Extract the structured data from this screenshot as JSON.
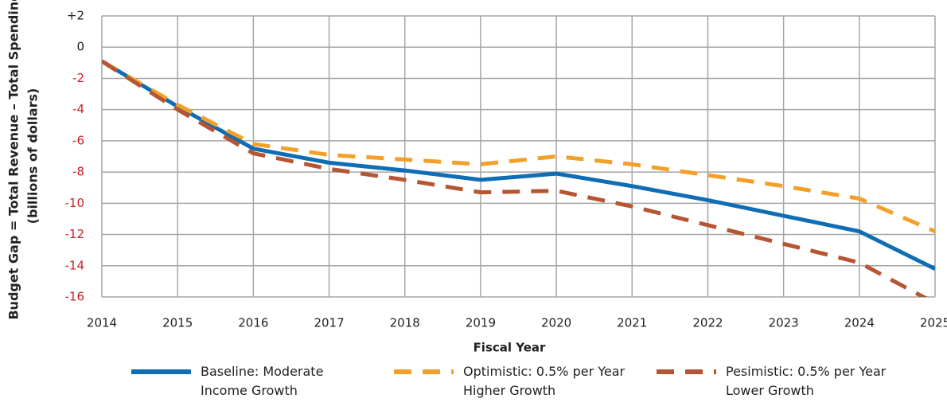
{
  "chart_data": {
    "type": "line",
    "xlabel": "Fiscal Year",
    "ylabel": [
      "Budget Gap = Total Revenue – Total Spending",
      "(billions of dollars)"
    ],
    "x": [
      2014,
      2015,
      2016,
      2017,
      2018,
      2019,
      2020,
      2021,
      2022,
      2023,
      2024,
      2025
    ],
    "xlim": [
      2014,
      2025
    ],
    "xticks": [
      2014,
      2015,
      2016,
      2017,
      2018,
      2019,
      2020,
      2021,
      2022,
      2023,
      2024,
      2025
    ],
    "ylim": [
      -16,
      2
    ],
    "yticks": [
      {
        "value": 2,
        "label": "+2"
      },
      0,
      -2,
      -4,
      -6,
      -8,
      -10,
      -12,
      -14,
      -16
    ],
    "grid": true,
    "legend": "bottom",
    "series": [
      {
        "name": "Baseline: Moderate Income Growth",
        "color": "#0f6db3",
        "line_style": "solid",
        "values": [
          -0.9,
          -3.8,
          -6.5,
          -7.4,
          -7.9,
          -8.5,
          -8.1,
          -8.9,
          -9.8,
          -10.8,
          -11.8,
          -14.2
        ]
      },
      {
        "name": "Optimistic: 0.5% per Year Higher Growth",
        "color": "#f3a02a",
        "line_style": "dashed",
        "values": [
          -0.9,
          -3.7,
          -6.2,
          -6.9,
          -7.2,
          -7.5,
          -7.0,
          -7.5,
          -8.2,
          -8.9,
          -9.7,
          -11.8
        ]
      },
      {
        "name": "Pesimistic: 0.5% per Year Lower Growth",
        "color": "#b65532",
        "line_style": "dashed",
        "values": [
          -0.9,
          -4.0,
          -6.8,
          -7.8,
          -8.5,
          -9.3,
          -9.2,
          -10.2,
          -11.4,
          -12.6,
          -13.8,
          -16.4
        ]
      }
    ]
  }
}
